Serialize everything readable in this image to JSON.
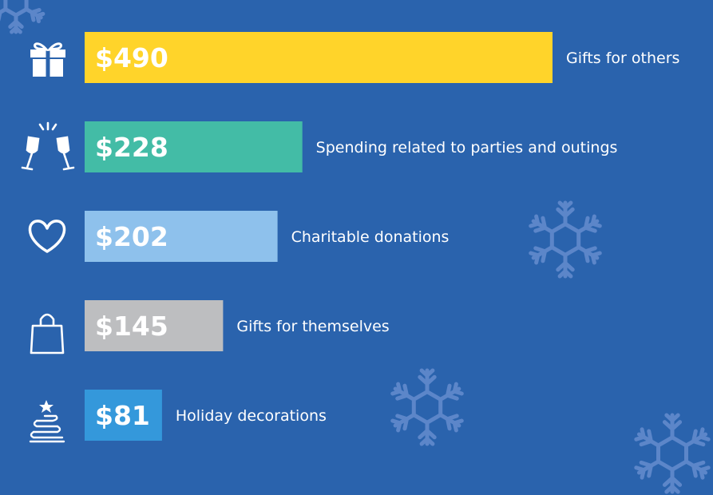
{
  "chart_data": {
    "type": "bar",
    "orientation": "horizontal",
    "title": "",
    "xlabel": "",
    "ylabel": "",
    "xlim": [
      0,
      490
    ],
    "grid": false,
    "legend": "none",
    "categories": [
      "Gifts for others",
      "Spending related to parties and outings",
      "Charitable donations",
      "Gifts for themselves",
      "Holiday decorations"
    ],
    "values": [
      490,
      228,
      202,
      145,
      81
    ],
    "value_labels": [
      "$490",
      "$228",
      "$202",
      "$145",
      "$81"
    ],
    "icons": [
      "gift-icon",
      "wine-glasses-icon",
      "heart-icon",
      "shopping-bag-icon",
      "christmas-tree-icon"
    ],
    "colors": [
      "#FFD42A",
      "#43BCA6",
      "#8EC1EC",
      "#BDBEC0",
      "#3498DB"
    ],
    "value_text_colors": [
      "#FFFFFF",
      "#FFFFFF",
      "#FFFFFF",
      "#FFFFFF",
      "#FFFFFF"
    ],
    "background_color": "#2A63AD"
  }
}
